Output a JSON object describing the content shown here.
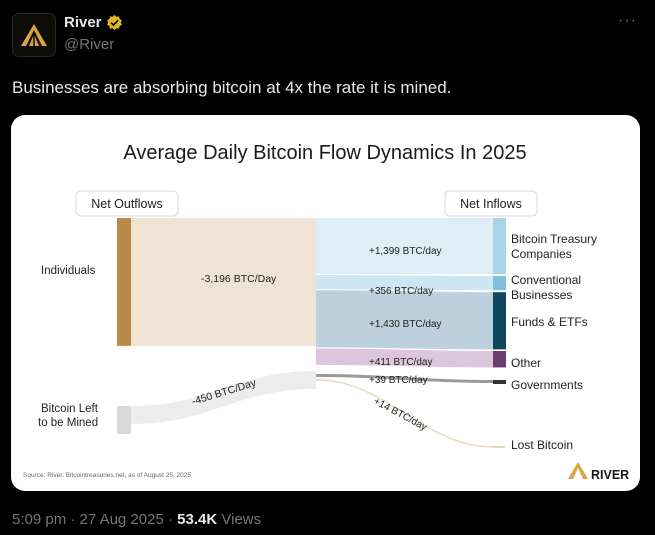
{
  "author": {
    "display_name": "River",
    "handle": "@River",
    "verified_badge": "gold-verified-badge-icon",
    "avatar_icon": "river-logo-icon"
  },
  "menu": {
    "label": "···"
  },
  "tweet": {
    "text": "Businesses are absorbing bitcoin at 4x the rate it is mined."
  },
  "infographic": {
    "title": "Average Daily Bitcoin Flow Dynamics In 2025",
    "net_outflows_label": "Net Outflows",
    "net_inflows_label": "Net Inflows",
    "sources": [
      {
        "name": "Individuals",
        "lines": [
          "Individuals"
        ],
        "value": -3196,
        "flow_label": "-3,196 BTC/Day"
      },
      {
        "name": "Bitcoin Left to be Mined",
        "lines": [
          "Bitcoin Left",
          "to be Mined"
        ],
        "value": -450,
        "flow_label": "-450 BTC/Day"
      }
    ],
    "destinations": [
      {
        "name": "Bitcoin Treasury Companies",
        "lines": [
          "Bitcoin Treasury",
          "Companies"
        ],
        "value": 1399,
        "flow_label": "+1,399 BTC/day",
        "color": "#a9d3e6"
      },
      {
        "name": "Conventional Businesses",
        "lines": [
          "Conventional",
          "Businesses"
        ],
        "value": 356,
        "flow_label": "+356 BTC/day",
        "color": "#7fc0da"
      },
      {
        "name": "Funds & ETFs",
        "lines": [
          "Funds & ETFs"
        ],
        "value": 1430,
        "flow_label": "+1,430 BTC/day",
        "color": "#0f4660"
      },
      {
        "name": "Other",
        "lines": [
          "Other"
        ],
        "value": 411,
        "flow_label": "+411 BTC/day",
        "color": "#6b3d6e"
      },
      {
        "name": "Governments",
        "lines": [
          "Governments"
        ],
        "value": 39,
        "flow_label": "+39 BTC/day",
        "color": "#333333"
      },
      {
        "name": "Lost Bitcoin",
        "lines": [
          "Lost Bitcoin"
        ],
        "value": 14,
        "flow_label": "+14 BTC/day",
        "color": "#e8d7b9"
      }
    ],
    "source_note": "Source: River, Bitcointreasuries.net, as of August 25, 2025",
    "brand": "RIVER",
    "colors": {
      "individuals_bar": "#b88a45",
      "individuals_flow": "#efe4d3",
      "mined_bar": "#d9d9d9",
      "mined_flow": "#ececec"
    }
  },
  "meta": {
    "time": "5:09 pm",
    "date": "27 Aug 2025",
    "views_count": "53.4K",
    "views_label": "Views",
    "separator": "·"
  }
}
